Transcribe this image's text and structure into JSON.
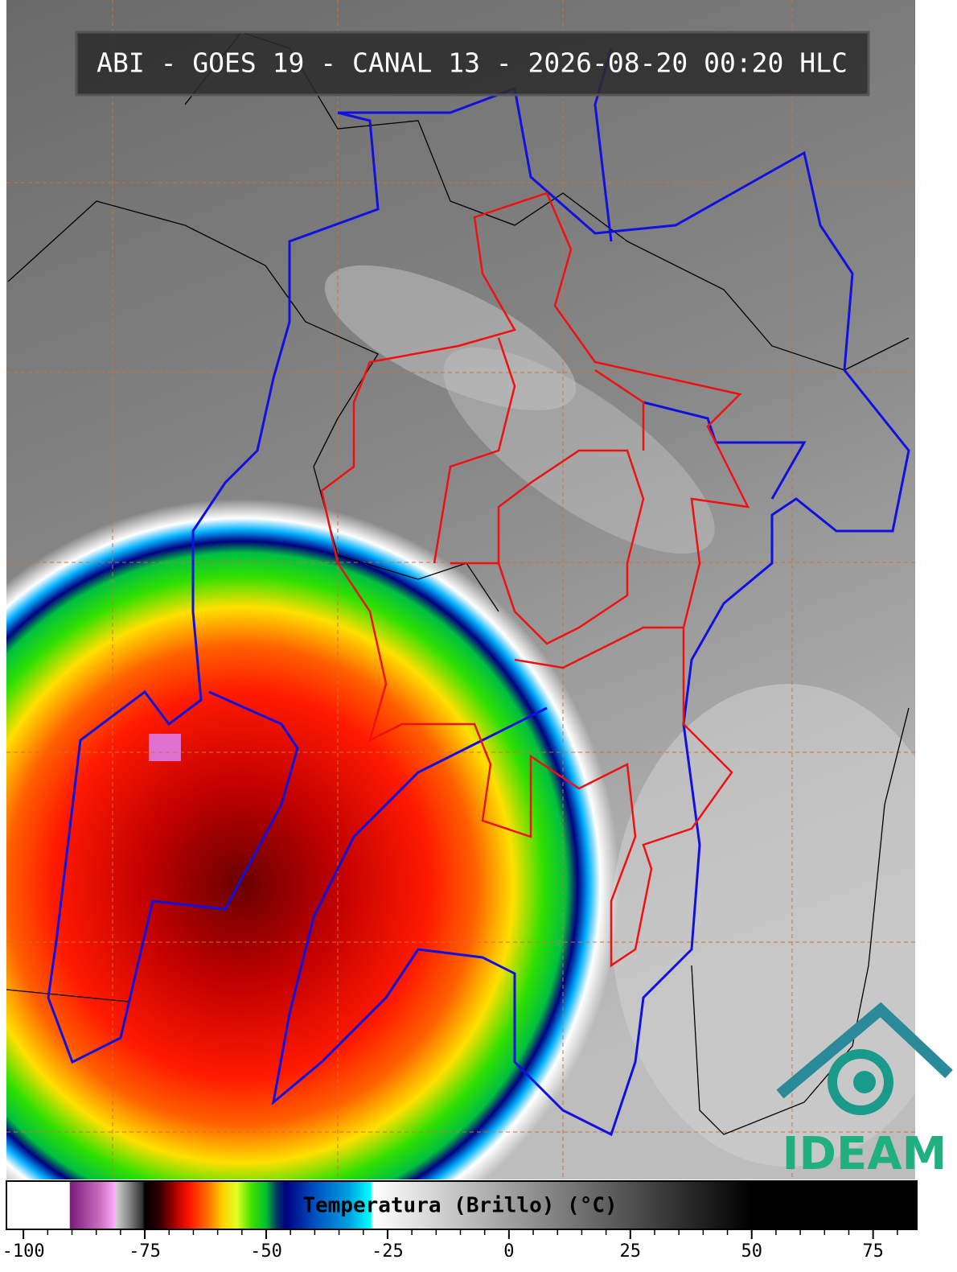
{
  "title": "ABI - GOES 19 - CANAL 13 - 2026-08-20 00:20 HLC",
  "logo": "IDEAM",
  "colorbar": {
    "label": "Temperatura (Brillo) (°C)",
    "xlim": [
      -103.5,
      84
    ],
    "ticks": [
      -100,
      -75,
      -50,
      -25,
      0,
      25,
      50,
      75
    ],
    "minor_ticks": [
      -95,
      -90,
      -85,
      -80,
      -70,
      -65,
      -60,
      -55,
      -45,
      -40,
      -35,
      -30,
      -20,
      -15,
      -10,
      -5,
      5,
      10,
      15,
      20,
      30,
      35,
      40,
      45,
      55,
      60,
      65,
      70,
      80
    ],
    "colormap": [
      {
        "value": -103.5,
        "color": "#ffffff"
      },
      {
        "value": -90.5,
        "color": "#ffffff"
      },
      {
        "value": -90.4,
        "color": "#7a1a7a"
      },
      {
        "value": -84,
        "color": "#d070c0"
      },
      {
        "value": -81,
        "color": "#ffb0ff"
      },
      {
        "value": -80.9,
        "color": "#d0d0d0"
      },
      {
        "value": -78,
        "color": "#808080"
      },
      {
        "value": -75.5,
        "color": "#303030"
      },
      {
        "value": -75,
        "color": "#000000"
      },
      {
        "value": -72,
        "color": "#300000"
      },
      {
        "value": -69,
        "color": "#a00000"
      },
      {
        "value": -66,
        "color": "#ff1000"
      },
      {
        "value": -62,
        "color": "#ff7000"
      },
      {
        "value": -59,
        "color": "#ffd000"
      },
      {
        "value": -56,
        "color": "#e0ff20"
      },
      {
        "value": -53,
        "color": "#40e000"
      },
      {
        "value": -50,
        "color": "#00c030"
      },
      {
        "value": -48,
        "color": "#004060"
      },
      {
        "value": -46,
        "color": "#000080"
      },
      {
        "value": -40,
        "color": "#0050c0"
      },
      {
        "value": -33,
        "color": "#00a0e0"
      },
      {
        "value": -28.5,
        "color": "#00ffff"
      },
      {
        "value": -28,
        "color": "#ffffff"
      },
      {
        "value": 0,
        "color": "#a0a0a0"
      },
      {
        "value": 30,
        "color": "#404040"
      },
      {
        "value": 50,
        "color": "#000000"
      },
      {
        "value": 84,
        "color": "#000000"
      }
    ]
  }
}
